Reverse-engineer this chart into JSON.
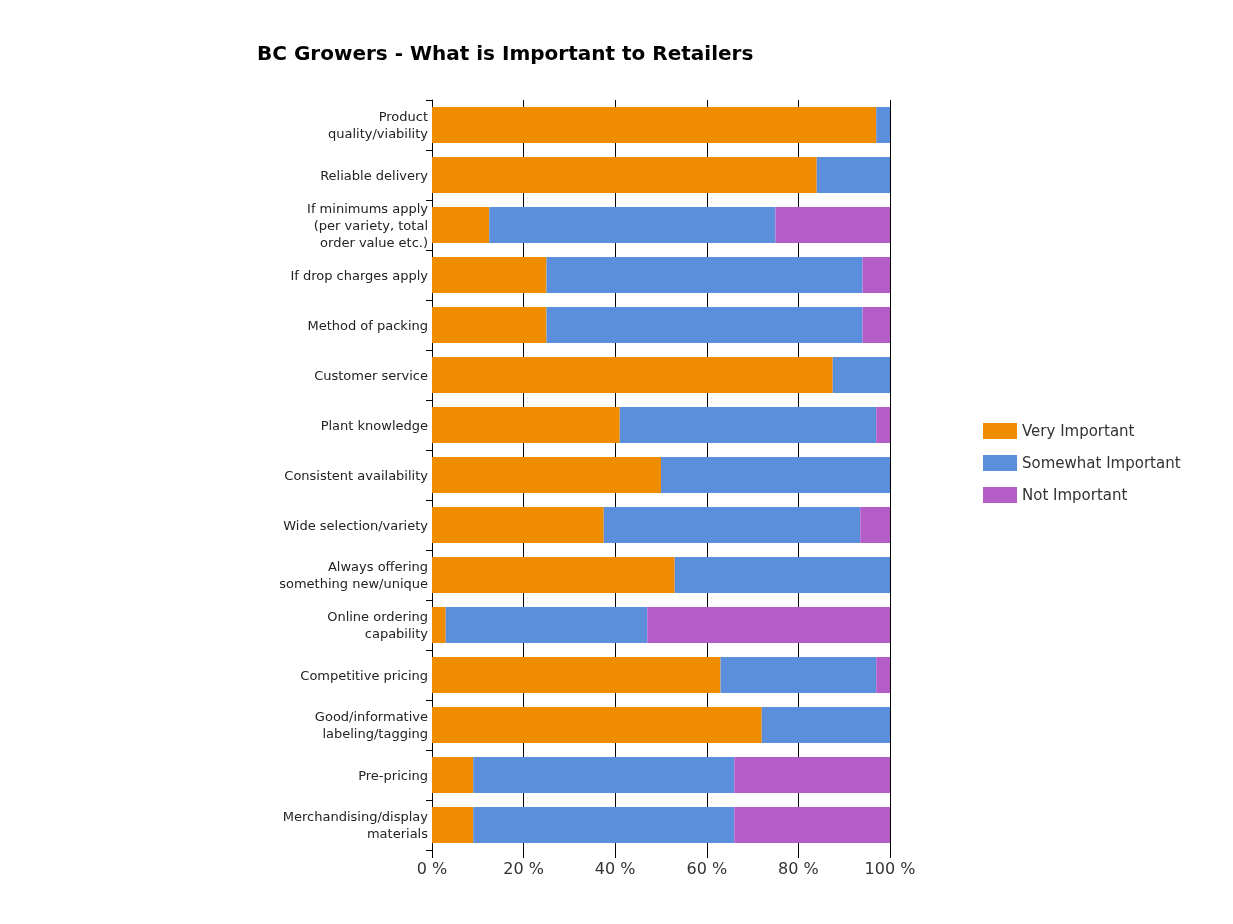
{
  "chart_data": {
    "type": "bar",
    "title": "BC Growers - What is Important to Retailers",
    "orientation": "horizontal",
    "stacked": true,
    "categories": [
      "Product\nquality/viability",
      "Reliable delivery",
      "If minimums apply\n(per variety, total\norder value etc.)",
      "If drop charges apply",
      "Method of packing",
      "Customer service",
      "Plant knowledge",
      "Consistent availability",
      "Wide selection/variety",
      "Always offering\nsomething new/unique",
      "Online ordering\ncapability",
      "Competitive pricing",
      "Good/informative\nlabeling/tagging",
      "Pre-pricing",
      "Merchandising/display\nmaterials"
    ],
    "series": [
      {
        "name": "Very Important",
        "color": "#f08c00",
        "values": [
          97,
          84,
          12.5,
          25,
          25,
          87.5,
          41,
          50,
          37.5,
          53,
          3,
          63,
          72,
          9,
          9
        ]
      },
      {
        "name": "Somewhat Important",
        "color": "#5b8fdc",
        "values": [
          3,
          16,
          62.5,
          69,
          69,
          12.5,
          56,
          50,
          56,
          47,
          44,
          34,
          28,
          57,
          57
        ]
      },
      {
        "name": "Not Important",
        "color": "#b45cc8",
        "values": [
          0,
          0,
          25,
          6,
          6,
          0,
          3,
          0,
          6.5,
          0,
          53,
          3,
          0,
          34,
          34
        ]
      }
    ],
    "xlim": [
      0,
      100
    ],
    "xticks": [
      {
        "value": 0,
        "label": "0 %"
      },
      {
        "value": 20,
        "label": "20 %"
      },
      {
        "value": 40,
        "label": "40 %"
      },
      {
        "value": 60,
        "label": "60 %"
      },
      {
        "value": 80,
        "label": "80 %"
      },
      {
        "value": 100,
        "label": "100 %"
      }
    ],
    "grid": "x",
    "legend": "right"
  }
}
